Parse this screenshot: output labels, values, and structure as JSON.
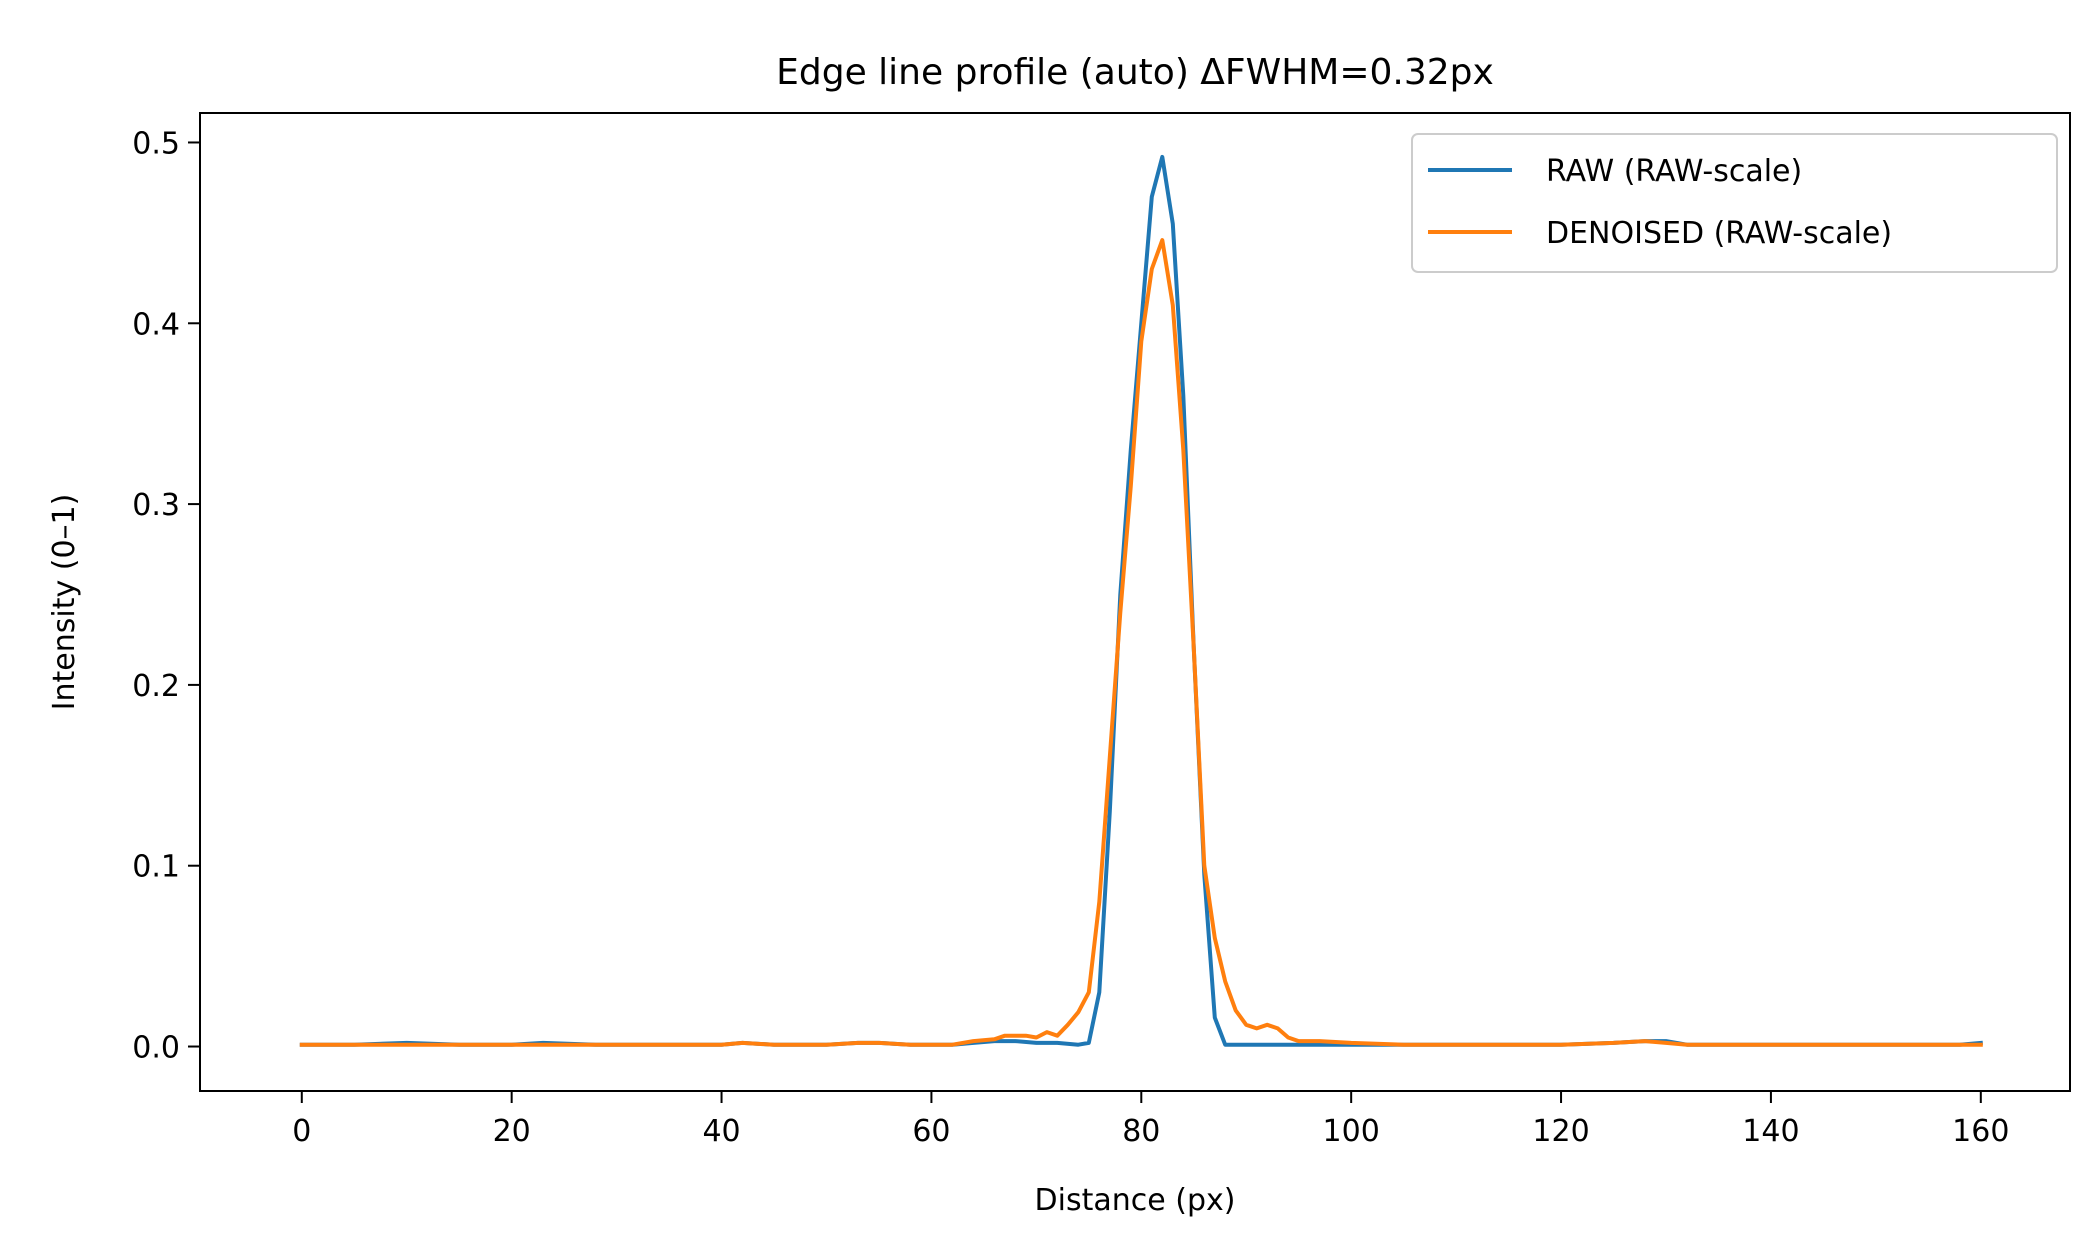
{
  "chart_data": {
    "type": "line",
    "title": "Edge line profile (auto)  ΔFWHM=0.32px",
    "xlabel": "Distance (px)",
    "ylabel": "Intensity (0–1)",
    "xlim": [
      -9.7,
      168.5
    ],
    "ylim": [
      -0.0246,
      0.5163
    ],
    "x_ticks": [
      0,
      20,
      40,
      60,
      80,
      100,
      120,
      140,
      160
    ],
    "y_ticks": [
      0.0,
      0.1,
      0.2,
      0.3,
      0.4,
      0.5
    ],
    "x_tick_labels": [
      "0",
      "20",
      "40",
      "60",
      "80",
      "100",
      "120",
      "140",
      "160"
    ],
    "y_tick_labels": [
      "0.0",
      "0.1",
      "0.2",
      "0.3",
      "0.4",
      "0.5"
    ],
    "grid": false,
    "legend_position": "top-right",
    "series": [
      {
        "name": "RAW (RAW-scale)",
        "color": "#1f77b4",
        "points": [
          [
            0,
            0.001
          ],
          [
            5,
            0.001
          ],
          [
            10,
            0.002
          ],
          [
            15,
            0.001
          ],
          [
            20,
            0.001
          ],
          [
            23,
            0.002
          ],
          [
            28,
            0.001
          ],
          [
            35,
            0.001
          ],
          [
            40,
            0.001
          ],
          [
            42,
            0.002
          ],
          [
            45,
            0.001
          ],
          [
            50,
            0.001
          ],
          [
            53,
            0.002
          ],
          [
            55,
            0.002
          ],
          [
            58,
            0.001
          ],
          [
            62,
            0.001
          ],
          [
            64,
            0.002
          ],
          [
            66,
            0.003
          ],
          [
            68,
            0.003
          ],
          [
            70,
            0.002
          ],
          [
            72,
            0.002
          ],
          [
            74,
            0.001
          ],
          [
            75,
            0.002
          ],
          [
            76,
            0.03
          ],
          [
            77,
            0.13
          ],
          [
            78,
            0.25
          ],
          [
            79,
            0.33
          ],
          [
            80,
            0.4
          ],
          [
            81,
            0.47
          ],
          [
            82,
            0.492
          ],
          [
            83,
            0.455
          ],
          [
            84,
            0.36
          ],
          [
            85,
            0.22
          ],
          [
            86,
            0.095
          ],
          [
            87,
            0.016
          ],
          [
            88,
            0.001
          ],
          [
            92,
            0.001
          ],
          [
            95,
            0.001
          ],
          [
            100,
            0.001
          ],
          [
            110,
            0.001
          ],
          [
            120,
            0.001
          ],
          [
            125,
            0.002
          ],
          [
            128,
            0.003
          ],
          [
            130,
            0.003
          ],
          [
            132,
            0.001
          ],
          [
            140,
            0.001
          ],
          [
            150,
            0.001
          ],
          [
            158,
            0.001
          ],
          [
            160,
            0.002
          ]
        ]
      },
      {
        "name": "DENOISED (RAW-scale)",
        "color": "#ff7f0e",
        "points": [
          [
            0,
            0.001
          ],
          [
            5,
            0.001
          ],
          [
            10,
            0.001
          ],
          [
            15,
            0.001
          ],
          [
            20,
            0.001
          ],
          [
            23,
            0.001
          ],
          [
            28,
            0.001
          ],
          [
            35,
            0.001
          ],
          [
            40,
            0.001
          ],
          [
            42,
            0.002
          ],
          [
            45,
            0.001
          ],
          [
            50,
            0.001
          ],
          [
            53,
            0.002
          ],
          [
            55,
            0.002
          ],
          [
            58,
            0.001
          ],
          [
            62,
            0.001
          ],
          [
            64,
            0.003
          ],
          [
            66,
            0.004
          ],
          [
            67,
            0.006
          ],
          [
            68,
            0.006
          ],
          [
            69,
            0.006
          ],
          [
            70,
            0.005
          ],
          [
            71,
            0.008
          ],
          [
            72,
            0.006
          ],
          [
            73,
            0.012
          ],
          [
            74,
            0.019
          ],
          [
            75,
            0.03
          ],
          [
            76,
            0.08
          ],
          [
            77,
            0.16
          ],
          [
            78,
            0.24
          ],
          [
            79,
            0.31
          ],
          [
            80,
            0.39
          ],
          [
            81,
            0.43
          ],
          [
            82,
            0.446
          ],
          [
            83,
            0.41
          ],
          [
            84,
            0.33
          ],
          [
            85,
            0.22
          ],
          [
            86,
            0.1
          ],
          [
            87,
            0.06
          ],
          [
            88,
            0.036
          ],
          [
            89,
            0.02
          ],
          [
            90,
            0.012
          ],
          [
            91,
            0.01
          ],
          [
            92,
            0.012
          ],
          [
            93,
            0.01
          ],
          [
            94,
            0.005
          ],
          [
            95,
            0.003
          ],
          [
            97,
            0.003
          ],
          [
            100,
            0.002
          ],
          [
            105,
            0.001
          ],
          [
            110,
            0.001
          ],
          [
            120,
            0.001
          ],
          [
            125,
            0.002
          ],
          [
            128,
            0.003
          ],
          [
            130,
            0.002
          ],
          [
            132,
            0.001
          ],
          [
            140,
            0.001
          ],
          [
            150,
            0.001
          ],
          [
            158,
            0.001
          ],
          [
            160,
            0.001
          ]
        ]
      }
    ]
  }
}
